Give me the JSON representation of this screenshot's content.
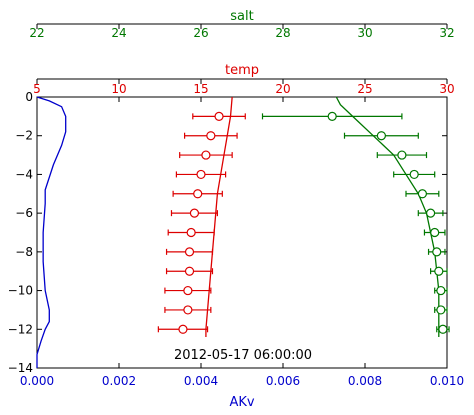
{
  "chart_data": {
    "type": "line",
    "annotation": "2012-05-17 06:00:00",
    "axes": {
      "akv": {
        "label": "AKv",
        "color": "#0000cc",
        "lim": [
          0.0,
          0.01
        ],
        "ticks": [
          0.0,
          0.002,
          0.004,
          0.006,
          0.008,
          0.01
        ],
        "tick_labels": [
          "0.000",
          "0.002",
          "0.004",
          "0.006",
          "0.008",
          "0.010"
        ]
      },
      "temp": {
        "label": "temp",
        "color": "#dd0000",
        "lim": [
          5,
          30
        ],
        "ticks": [
          5,
          10,
          15,
          20,
          25,
          30
        ],
        "tick_labels": [
          "5",
          "10",
          "15",
          "20",
          "25",
          "30"
        ]
      },
      "salt": {
        "label": "salt",
        "color": "#007700",
        "lim": [
          22,
          32
        ],
        "ticks": [
          22,
          24,
          26,
          28,
          30,
          32
        ],
        "tick_labels": [
          "22",
          "24",
          "26",
          "28",
          "30",
          "32"
        ]
      },
      "depth": {
        "lim": [
          -14,
          0
        ],
        "ticks": [
          0,
          -2,
          -4,
          -6,
          -8,
          -10,
          -12,
          -14
        ],
        "tick_labels": [
          "0",
          "−2",
          "−4",
          "−6",
          "−8",
          "−10",
          "−12",
          "−14"
        ]
      }
    },
    "series": [
      {
        "axis": "akv",
        "kind": "line",
        "color": "#0000cc",
        "points": [
          [
            0.0,
            0
          ],
          [
            0.0003,
            -0.2
          ],
          [
            0.0006,
            -0.5
          ],
          [
            0.0007,
            -1.0
          ],
          [
            0.0007,
            -1.8
          ],
          [
            0.0006,
            -2.5
          ],
          [
            0.0004,
            -3.5
          ],
          [
            0.0002,
            -4.8
          ],
          [
            0.0002,
            -5.5
          ],
          [
            0.00015,
            -7.0
          ],
          [
            0.00015,
            -8.5
          ],
          [
            0.0002,
            -10.0
          ],
          [
            0.0003,
            -11.0
          ],
          [
            0.0003,
            -11.6
          ],
          [
            0.0002,
            -12.0
          ],
          [
            0.0001,
            -12.6
          ],
          [
            0.0,
            -13.3
          ],
          [
            0.0,
            -14.0
          ]
        ]
      },
      {
        "axis": "temp",
        "kind": "line",
        "color": "#dd0000",
        "points": [
          [
            16.9,
            0
          ],
          [
            16.8,
            -1
          ],
          [
            16.6,
            -2
          ],
          [
            16.4,
            -3
          ],
          [
            16.2,
            -4
          ],
          [
            16.0,
            -5
          ],
          [
            15.9,
            -6
          ],
          [
            15.8,
            -7
          ],
          [
            15.7,
            -8
          ],
          [
            15.6,
            -9
          ],
          [
            15.5,
            -10
          ],
          [
            15.4,
            -11
          ],
          [
            15.3,
            -12
          ],
          [
            15.3,
            -12.4
          ]
        ]
      },
      {
        "axis": "temp",
        "kind": "errorbar",
        "color": "#dd0000",
        "points": [
          {
            "x": 16.1,
            "y": -1.0,
            "err": 1.6
          },
          {
            "x": 15.6,
            "y": -2.0,
            "err": 1.6
          },
          {
            "x": 15.3,
            "y": -3.0,
            "err": 1.6
          },
          {
            "x": 15.0,
            "y": -4.0,
            "err": 1.5
          },
          {
            "x": 14.8,
            "y": -5.0,
            "err": 1.5
          },
          {
            "x": 14.6,
            "y": -6.0,
            "err": 1.4
          },
          {
            "x": 14.4,
            "y": -7.0,
            "err": 1.4
          },
          {
            "x": 14.3,
            "y": -8.0,
            "err": 1.4
          },
          {
            "x": 14.3,
            "y": -9.0,
            "err": 1.4
          },
          {
            "x": 14.2,
            "y": -10.0,
            "err": 1.4
          },
          {
            "x": 14.2,
            "y": -11.0,
            "err": 1.4
          },
          {
            "x": 13.9,
            "y": -12.0,
            "err": 1.5
          }
        ]
      },
      {
        "axis": "salt",
        "kind": "line",
        "color": "#007700",
        "points": [
          [
            29.3,
            0
          ],
          [
            29.4,
            -0.4
          ],
          [
            29.7,
            -1
          ],
          [
            30.2,
            -2
          ],
          [
            30.7,
            -3
          ],
          [
            31.0,
            -4
          ],
          [
            31.3,
            -5
          ],
          [
            31.5,
            -6
          ],
          [
            31.6,
            -7
          ],
          [
            31.7,
            -8
          ],
          [
            31.75,
            -9
          ],
          [
            31.8,
            -10
          ],
          [
            31.8,
            -11
          ],
          [
            31.8,
            -12
          ],
          [
            31.8,
            -12.4
          ]
        ]
      },
      {
        "axis": "salt",
        "kind": "errorbar",
        "color": "#007700",
        "points": [
          {
            "x": 29.2,
            "y": -1.0,
            "err": 1.7
          },
          {
            "x": 30.4,
            "y": -2.0,
            "err": 0.9
          },
          {
            "x": 30.9,
            "y": -3.0,
            "err": 0.6
          },
          {
            "x": 31.2,
            "y": -4.0,
            "err": 0.5
          },
          {
            "x": 31.4,
            "y": -5.0,
            "err": 0.4
          },
          {
            "x": 31.6,
            "y": -6.0,
            "err": 0.3
          },
          {
            "x": 31.7,
            "y": -7.0,
            "err": 0.25
          },
          {
            "x": 31.75,
            "y": -8.0,
            "err": 0.2
          },
          {
            "x": 31.8,
            "y": -9.0,
            "err": 0.2
          },
          {
            "x": 31.85,
            "y": -10.0,
            "err": 0.15
          },
          {
            "x": 31.85,
            "y": -11.0,
            "err": 0.15
          },
          {
            "x": 31.9,
            "y": -12.0,
            "err": 0.15
          }
        ]
      }
    ]
  }
}
